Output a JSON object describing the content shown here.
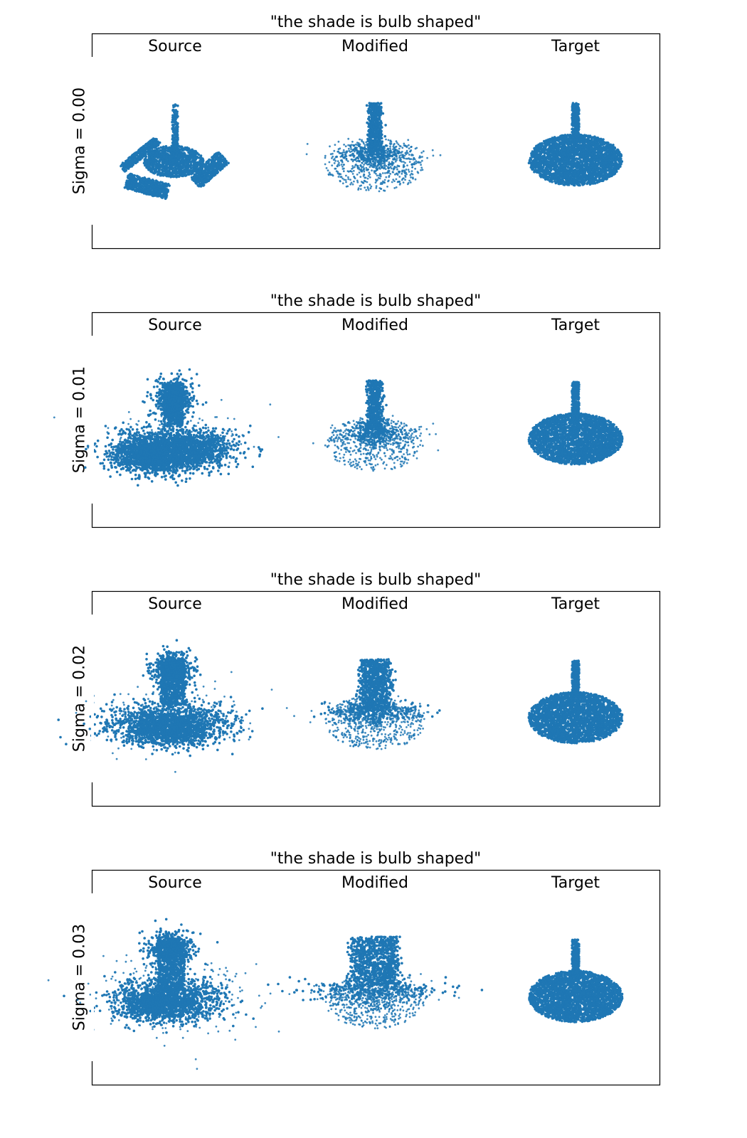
{
  "figure": {
    "point_color": "#1f77b4",
    "frame_color": "#000000"
  },
  "chart_data": [
    {
      "type": "scatter",
      "title": "\"the shade is bulb shaped\"",
      "ylabel": "Sigma = 0.00",
      "columns": [
        "Source",
        "Modified",
        "Target"
      ],
      "grid": false,
      "shapes": {
        "Source": "three-legged base with vertical stem",
        "Modified": "narrow column over scattered disc",
        "Target": "dense flat disc with thin vertical stem"
      }
    },
    {
      "type": "scatter",
      "title": "\"the shade is bulb shaped\"",
      "ylabel": "Sigma = 0.01",
      "columns": [
        "Source",
        "Modified",
        "Target"
      ],
      "grid": false,
      "shapes": {
        "Source": "bulb over wide dense base",
        "Modified": "narrow column over scattered disc",
        "Target": "dense flat disc with thin vertical stem"
      }
    },
    {
      "type": "scatter",
      "title": "\"the shade is bulb shaped\"",
      "ylabel": "Sigma = 0.02",
      "columns": [
        "Source",
        "Modified",
        "Target"
      ],
      "grid": false,
      "shapes": {
        "Source": "bulb over wide dense base",
        "Modified": "wider column over scattered disc",
        "Target": "dense flat disc with thin vertical stem"
      }
    },
    {
      "type": "scatter",
      "title": "\"the shade is bulb shaped\"",
      "ylabel": "Sigma = 0.03",
      "columns": [
        "Source",
        "Modified",
        "Target"
      ],
      "grid": false,
      "shapes": {
        "Source": "noisy bulb over dense base",
        "Modified": "wide noisy block over scattered disc",
        "Target": "dense flat disc with thin vertical stem"
      }
    }
  ]
}
